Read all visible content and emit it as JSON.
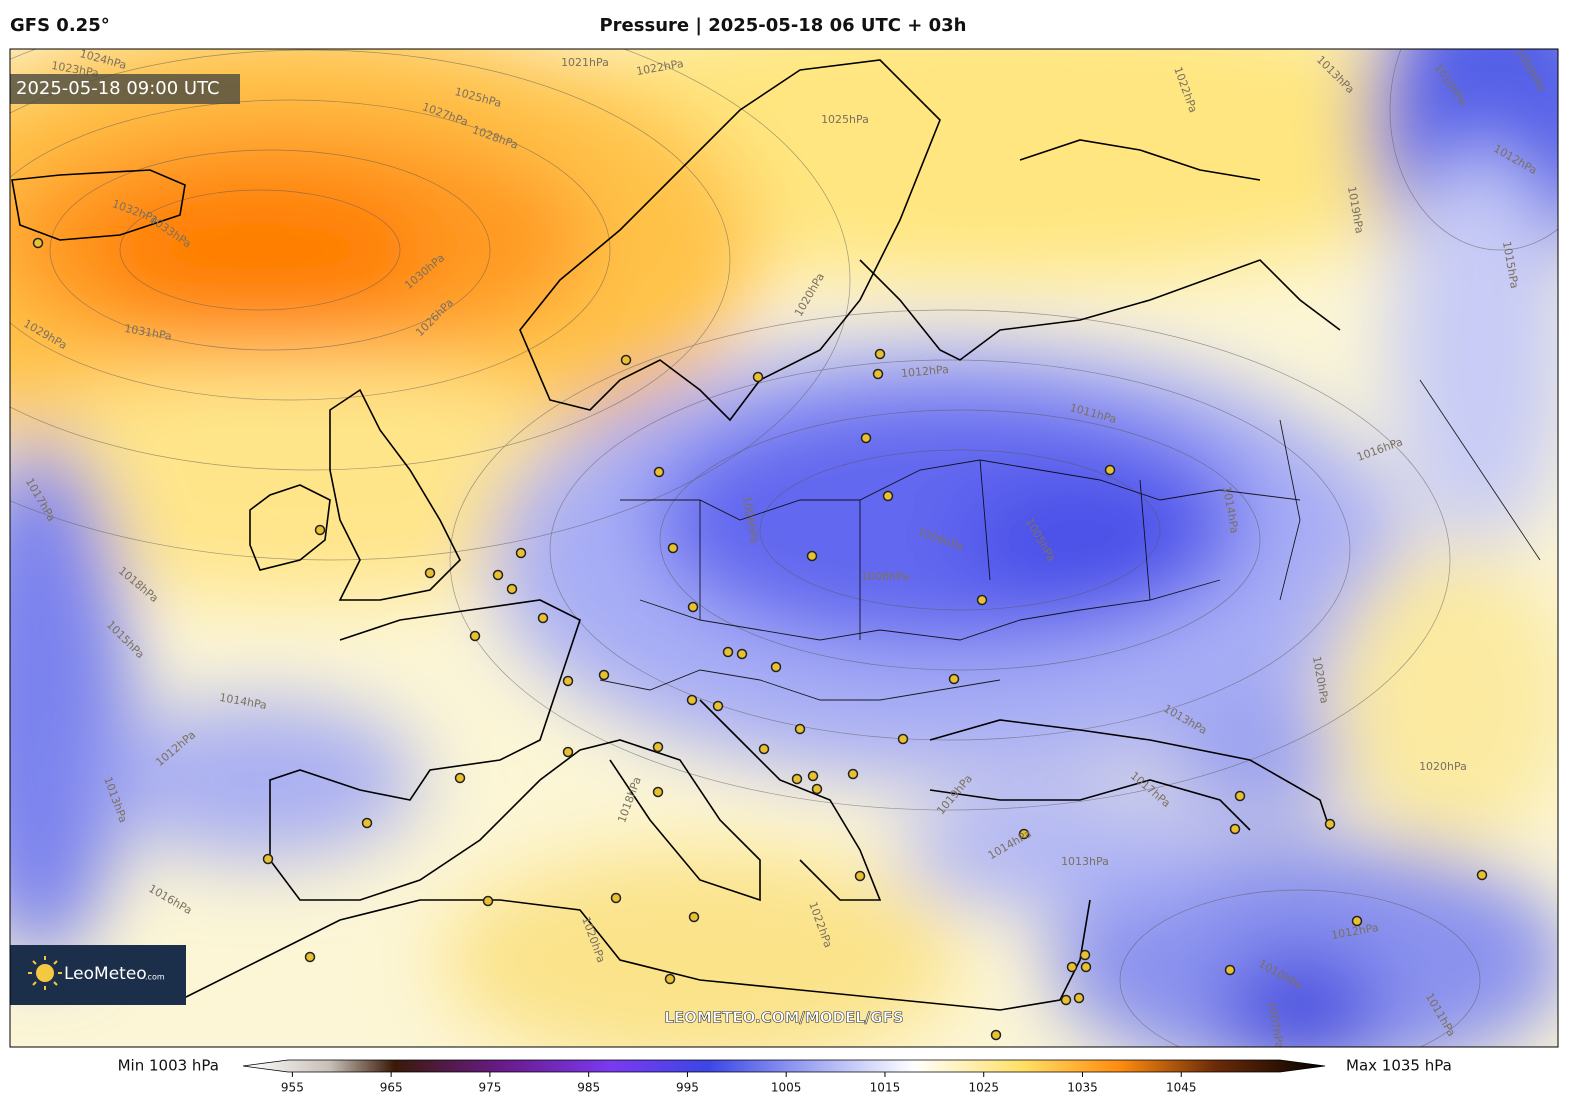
{
  "header": {
    "model": "GFS 0.25°",
    "title": "Pressure | 2025-05-18 06 UTC + 03h"
  },
  "map": {
    "valid_time": "2025-05-18 09:00 UTC",
    "logo": {
      "name": "LeoMeteo",
      "suffix": ".com"
    },
    "watermark": "LEOMETEO.COM/MODEL/GFS",
    "isobar_labels": [
      "1024hPa",
      "1023hPa",
      "1021hPa",
      "1022hPa",
      "1025hPa",
      "1027hPa",
      "1028hPa",
      "1032hPa",
      "1033hPa",
      "1030hPa",
      "1031hPa",
      "1029hPa",
      "1026hPa",
      "1025hPa",
      "1022hPa",
      "1013hPa",
      "1010hPa",
      "1009hPa",
      "1012hPa",
      "1019hPa",
      "1015hPa",
      "1020hPa",
      "1012hPa",
      "1011hPa",
      "1016hPa",
      "1006hPa",
      "1006hPa",
      "1008hPa",
      "1005hPa",
      "1014hPa",
      "1014hPa",
      "1012hPa",
      "1013hPa",
      "1016hPa",
      "1018hPa",
      "1015hPa",
      "1017hPa",
      "1013hPa",
      "1017hPa",
      "1018hPa",
      "1019hPa",
      "1020hPa",
      "1020hPa",
      "1014hPa",
      "1013hPa",
      "1012hPa",
      "1010hPa",
      "1007hPa",
      "1011hPa",
      "1022hPa",
      "1020hPa"
    ]
  },
  "colorbar": {
    "min_label": "Min 1003 hPa",
    "max_label": "Max 1035 hPa",
    "range": [
      950,
      1055
    ],
    "ticks": [
      955,
      965,
      975,
      985,
      995,
      1005,
      1015,
      1025,
      1035,
      1045
    ]
  }
}
